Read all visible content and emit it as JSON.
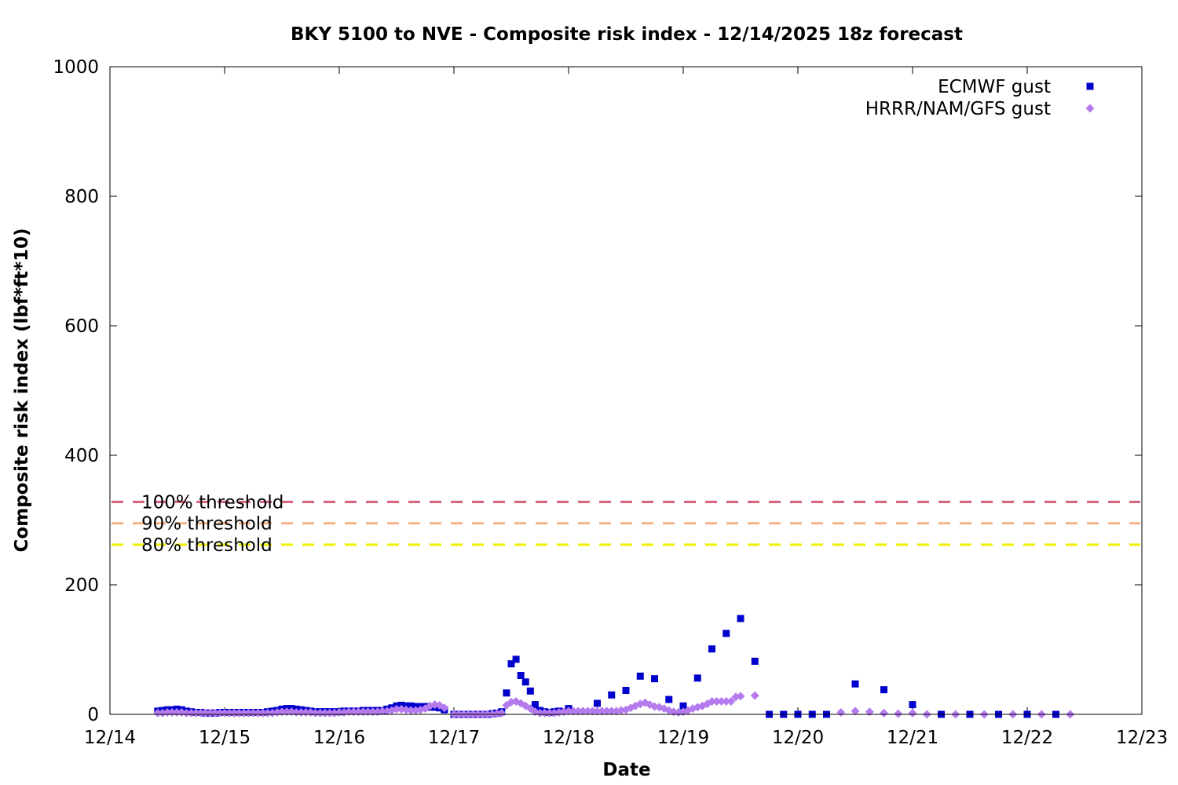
{
  "chart_data": {
    "type": "scatter",
    "title": "BKY 5100 to NVE - Composite risk index - 12/14/2025 18z forecast",
    "xlabel": "Date",
    "ylabel": "Composite risk index (lbf*ft*10)",
    "xlim": [
      "2025-12-14",
      "2025-12-23"
    ],
    "ylim": [
      0,
      1000
    ],
    "x_ticks": [
      "12/14",
      "12/15",
      "12/16",
      "12/17",
      "12/18",
      "12/19",
      "12/20",
      "12/21",
      "12/22",
      "12/23"
    ],
    "y_ticks": [
      0,
      200,
      400,
      600,
      800,
      1000
    ],
    "grid": false,
    "legend": "top-right",
    "colors": {
      "ecmwf": "#0000cc",
      "hrrr": "#b57bee",
      "threshold_100": "#d4607a",
      "threshold_90": "#f5b58a",
      "threshold_80": "#f0f000"
    },
    "thresholds": [
      {
        "label": "100% threshold",
        "value": 328,
        "color": "#d4607a"
      },
      {
        "label": "90% threshold",
        "value": 295,
        "color": "#f5b58a"
      },
      {
        "label": "80% threshold",
        "value": 262,
        "color": "#f0f000"
      }
    ],
    "series": [
      {
        "name": "ECMWF gust",
        "marker": "square",
        "color": "#0000cc",
        "points": [
          [
            "2025-12-14 10:00",
            5
          ],
          [
            "2025-12-14 11:00",
            6
          ],
          [
            "2025-12-14 12:00",
            7
          ],
          [
            "2025-12-14 13:00",
            7
          ],
          [
            "2025-12-14 14:00",
            8
          ],
          [
            "2025-12-14 15:00",
            7
          ],
          [
            "2025-12-14 16:00",
            5
          ],
          [
            "2025-12-14 17:00",
            4
          ],
          [
            "2025-12-14 18:00",
            3
          ],
          [
            "2025-12-14 19:00",
            3
          ],
          [
            "2025-12-14 20:00",
            2
          ],
          [
            "2025-12-14 21:00",
            2
          ],
          [
            "2025-12-14 22:00",
            2
          ],
          [
            "2025-12-14 23:00",
            3
          ],
          [
            "2025-12-15 00:00",
            3
          ],
          [
            "2025-12-15 01:00",
            3
          ],
          [
            "2025-12-15 02:00",
            3
          ],
          [
            "2025-12-15 03:00",
            3
          ],
          [
            "2025-12-15 04:00",
            3
          ],
          [
            "2025-12-15 05:00",
            3
          ],
          [
            "2025-12-15 06:00",
            3
          ],
          [
            "2025-12-15 07:00",
            3
          ],
          [
            "2025-12-15 08:00",
            3
          ],
          [
            "2025-12-15 09:00",
            4
          ],
          [
            "2025-12-15 10:00",
            5
          ],
          [
            "2025-12-15 11:00",
            6
          ],
          [
            "2025-12-15 12:00",
            8
          ],
          [
            "2025-12-15 13:00",
            9
          ],
          [
            "2025-12-15 14:00",
            9
          ],
          [
            "2025-12-15 15:00",
            8
          ],
          [
            "2025-12-15 16:00",
            7
          ],
          [
            "2025-12-15 17:00",
            6
          ],
          [
            "2025-12-15 18:00",
            5
          ],
          [
            "2025-12-15 19:00",
            4
          ],
          [
            "2025-12-15 20:00",
            4
          ],
          [
            "2025-12-15 21:00",
            4
          ],
          [
            "2025-12-15 22:00",
            4
          ],
          [
            "2025-12-15 23:00",
            4
          ],
          [
            "2025-12-16 00:00",
            4
          ],
          [
            "2025-12-16 01:00",
            5
          ],
          [
            "2025-12-16 02:00",
            5
          ],
          [
            "2025-12-16 03:00",
            5
          ],
          [
            "2025-12-16 04:00",
            5
          ],
          [
            "2025-12-16 05:00",
            6
          ],
          [
            "2025-12-16 06:00",
            6
          ],
          [
            "2025-12-16 07:00",
            6
          ],
          [
            "2025-12-16 08:00",
            6
          ],
          [
            "2025-12-16 09:00",
            6
          ],
          [
            "2025-12-16 10:00",
            8
          ],
          [
            "2025-12-16 11:00",
            10
          ],
          [
            "2025-12-16 12:00",
            13
          ],
          [
            "2025-12-16 13:00",
            14
          ],
          [
            "2025-12-16 14:00",
            13
          ],
          [
            "2025-12-16 15:00",
            13
          ],
          [
            "2025-12-16 16:00",
            12
          ],
          [
            "2025-12-16 17:00",
            12
          ],
          [
            "2025-12-16 18:00",
            12
          ],
          [
            "2025-12-16 19:00",
            11
          ],
          [
            "2025-12-16 20:00",
            11
          ],
          [
            "2025-12-16 21:00",
            10
          ],
          [
            "2025-12-16 22:00",
            7
          ],
          [
            "2025-12-17 00:00",
            0
          ],
          [
            "2025-12-17 01:00",
            0
          ],
          [
            "2025-12-17 02:00",
            0
          ],
          [
            "2025-12-17 03:00",
            0
          ],
          [
            "2025-12-17 04:00",
            0
          ],
          [
            "2025-12-17 05:00",
            0
          ],
          [
            "2025-12-17 06:00",
            0
          ],
          [
            "2025-12-17 07:00",
            0
          ],
          [
            "2025-12-17 08:00",
            1
          ],
          [
            "2025-12-17 09:00",
            2
          ],
          [
            "2025-12-17 10:00",
            4
          ],
          [
            "2025-12-17 11:00",
            33
          ],
          [
            "2025-12-17 12:00",
            78
          ],
          [
            "2025-12-17 13:00",
            85
          ],
          [
            "2025-12-17 14:00",
            60
          ],
          [
            "2025-12-17 15:00",
            50
          ],
          [
            "2025-12-17 16:00",
            36
          ],
          [
            "2025-12-17 17:00",
            15
          ],
          [
            "2025-12-17 18:00",
            6
          ],
          [
            "2025-12-17 19:00",
            4
          ],
          [
            "2025-12-17 20:00",
            3
          ],
          [
            "2025-12-17 21:00",
            4
          ],
          [
            "2025-12-17 22:00",
            5
          ],
          [
            "2025-12-18 00:00",
            9
          ],
          [
            "2025-12-18 06:00",
            17
          ],
          [
            "2025-12-18 09:00",
            30
          ],
          [
            "2025-12-18 12:00",
            37
          ],
          [
            "2025-12-18 15:00",
            59
          ],
          [
            "2025-12-18 18:00",
            55
          ],
          [
            "2025-12-18 21:00",
            23
          ],
          [
            "2025-12-19 00:00",
            13
          ],
          [
            "2025-12-19 03:00",
            56
          ],
          [
            "2025-12-19 06:00",
            101
          ],
          [
            "2025-12-19 09:00",
            125
          ],
          [
            "2025-12-19 12:00",
            148
          ],
          [
            "2025-12-19 15:00",
            82
          ],
          [
            "2025-12-19 18:00",
            0
          ],
          [
            "2025-12-19 21:00",
            0
          ],
          [
            "2025-12-20 00:00",
            0
          ],
          [
            "2025-12-20 03:00",
            0
          ],
          [
            "2025-12-20 06:00",
            0
          ],
          [
            "2025-12-20 12:00",
            47
          ],
          [
            "2025-12-20 18:00",
            38
          ],
          [
            "2025-12-21 00:00",
            15
          ],
          [
            "2025-12-21 06:00",
            0
          ],
          [
            "2025-12-21 12:00",
            0
          ],
          [
            "2025-12-21 18:00",
            0
          ],
          [
            "2025-12-22 00:00",
            0
          ],
          [
            "2025-12-22 06:00",
            0
          ]
        ]
      },
      {
        "name": "HRRR/NAM/GFS gust",
        "marker": "diamond",
        "color": "#b57bee",
        "points": [
          [
            "2025-12-14 10:00",
            2
          ],
          [
            "2025-12-14 11:00",
            2
          ],
          [
            "2025-12-14 12:00",
            3
          ],
          [
            "2025-12-14 13:00",
            3
          ],
          [
            "2025-12-14 14:00",
            3
          ],
          [
            "2025-12-14 15:00",
            3
          ],
          [
            "2025-12-14 16:00",
            2
          ],
          [
            "2025-12-14 17:00",
            2
          ],
          [
            "2025-12-14 18:00",
            2
          ],
          [
            "2025-12-14 19:00",
            2
          ],
          [
            "2025-12-14 20:00",
            2
          ],
          [
            "2025-12-14 21:00",
            2
          ],
          [
            "2025-12-14 22:00",
            2
          ],
          [
            "2025-12-14 23:00",
            2
          ],
          [
            "2025-12-15 00:00",
            2
          ],
          [
            "2025-12-15 01:00",
            2
          ],
          [
            "2025-12-15 02:00",
            2
          ],
          [
            "2025-12-15 03:00",
            2
          ],
          [
            "2025-12-15 04:00",
            2
          ],
          [
            "2025-12-15 05:00",
            2
          ],
          [
            "2025-12-15 06:00",
            2
          ],
          [
            "2025-12-15 07:00",
            2
          ],
          [
            "2025-12-15 08:00",
            2
          ],
          [
            "2025-12-15 09:00",
            2
          ],
          [
            "2025-12-15 10:00",
            2
          ],
          [
            "2025-12-15 11:00",
            3
          ],
          [
            "2025-12-15 12:00",
            4
          ],
          [
            "2025-12-15 13:00",
            4
          ],
          [
            "2025-12-15 14:00",
            4
          ],
          [
            "2025-12-15 15:00",
            3
          ],
          [
            "2025-12-15 16:00",
            3
          ],
          [
            "2025-12-15 17:00",
            3
          ],
          [
            "2025-12-15 18:00",
            3
          ],
          [
            "2025-12-15 19:00",
            2
          ],
          [
            "2025-12-15 20:00",
            2
          ],
          [
            "2025-12-15 21:00",
            2
          ],
          [
            "2025-12-15 22:00",
            2
          ],
          [
            "2025-12-15 23:00",
            2
          ],
          [
            "2025-12-16 00:00",
            3
          ],
          [
            "2025-12-16 01:00",
            3
          ],
          [
            "2025-12-16 02:00",
            4
          ],
          [
            "2025-12-16 03:00",
            4
          ],
          [
            "2025-12-16 04:00",
            4
          ],
          [
            "2025-12-16 05:00",
            4
          ],
          [
            "2025-12-16 06:00",
            4
          ],
          [
            "2025-12-16 07:00",
            4
          ],
          [
            "2025-12-16 08:00",
            4
          ],
          [
            "2025-12-16 09:00",
            5
          ],
          [
            "2025-12-16 10:00",
            5
          ],
          [
            "2025-12-16 11:00",
            6
          ],
          [
            "2025-12-16 12:00",
            8
          ],
          [
            "2025-12-16 13:00",
            8
          ],
          [
            "2025-12-16 14:00",
            7
          ],
          [
            "2025-12-16 15:00",
            6
          ],
          [
            "2025-12-16 16:00",
            6
          ],
          [
            "2025-12-16 17:00",
            7
          ],
          [
            "2025-12-16 18:00",
            9
          ],
          [
            "2025-12-16 19:00",
            13
          ],
          [
            "2025-12-16 20:00",
            15
          ],
          [
            "2025-12-16 21:00",
            14
          ],
          [
            "2025-12-16 22:00",
            10
          ],
          [
            "2025-12-17 00:00",
            0
          ],
          [
            "2025-12-17 01:00",
            0
          ],
          [
            "2025-12-17 02:00",
            0
          ],
          [
            "2025-12-17 03:00",
            0
          ],
          [
            "2025-12-17 04:00",
            0
          ],
          [
            "2025-12-17 05:00",
            0
          ],
          [
            "2025-12-17 06:00",
            0
          ],
          [
            "2025-12-17 07:00",
            0
          ],
          [
            "2025-12-17 08:00",
            0
          ],
          [
            "2025-12-17 09:00",
            1
          ],
          [
            "2025-12-17 10:00",
            2
          ],
          [
            "2025-12-17 11:00",
            14
          ],
          [
            "2025-12-17 12:00",
            19
          ],
          [
            "2025-12-17 13:00",
            20
          ],
          [
            "2025-12-17 14:00",
            17
          ],
          [
            "2025-12-17 15:00",
            13
          ],
          [
            "2025-12-17 16:00",
            9
          ],
          [
            "2025-12-17 17:00",
            4
          ],
          [
            "2025-12-17 18:00",
            2
          ],
          [
            "2025-12-17 19:00",
            2
          ],
          [
            "2025-12-17 20:00",
            2
          ],
          [
            "2025-12-17 21:00",
            2
          ],
          [
            "2025-12-17 22:00",
            3
          ],
          [
            "2025-12-17 23:00",
            4
          ],
          [
            "2025-12-18 00:00",
            5
          ],
          [
            "2025-12-18 01:00",
            5
          ],
          [
            "2025-12-18 02:00",
            5
          ],
          [
            "2025-12-18 03:00",
            5
          ],
          [
            "2025-12-18 04:00",
            5
          ],
          [
            "2025-12-18 05:00",
            5
          ],
          [
            "2025-12-18 06:00",
            5
          ],
          [
            "2025-12-18 07:00",
            5
          ],
          [
            "2025-12-18 08:00",
            5
          ],
          [
            "2025-12-18 09:00",
            5
          ],
          [
            "2025-12-18 10:00",
            5
          ],
          [
            "2025-12-18 11:00",
            6
          ],
          [
            "2025-12-18 12:00",
            7
          ],
          [
            "2025-12-18 13:00",
            10
          ],
          [
            "2025-12-18 14:00",
            13
          ],
          [
            "2025-12-18 15:00",
            16
          ],
          [
            "2025-12-18 16:00",
            18
          ],
          [
            "2025-12-18 17:00",
            15
          ],
          [
            "2025-12-18 18:00",
            12
          ],
          [
            "2025-12-18 19:00",
            11
          ],
          [
            "2025-12-18 20:00",
            9
          ],
          [
            "2025-12-18 21:00",
            6
          ],
          [
            "2025-12-18 22:00",
            4
          ],
          [
            "2025-12-18 23:00",
            3
          ],
          [
            "2025-12-19 00:00",
            4
          ],
          [
            "2025-12-19 01:00",
            6
          ],
          [
            "2025-12-19 02:00",
            9
          ],
          [
            "2025-12-19 03:00",
            11
          ],
          [
            "2025-12-19 04:00",
            13
          ],
          [
            "2025-12-19 05:00",
            16
          ],
          [
            "2025-12-19 06:00",
            20
          ],
          [
            "2025-12-19 07:00",
            20
          ],
          [
            "2025-12-19 08:00",
            20
          ],
          [
            "2025-12-19 09:00",
            20
          ],
          [
            "2025-12-19 10:00",
            20
          ],
          [
            "2025-12-19 11:00",
            27
          ],
          [
            "2025-12-19 12:00",
            28
          ],
          [
            "2025-12-19 15:00",
            29
          ],
          [
            "2025-12-20 09:00",
            3
          ],
          [
            "2025-12-20 12:00",
            5
          ],
          [
            "2025-12-20 15:00",
            4
          ],
          [
            "2025-12-20 18:00",
            2
          ],
          [
            "2025-12-20 21:00",
            1
          ],
          [
            "2025-12-21 00:00",
            2
          ],
          [
            "2025-12-21 03:00",
            0
          ],
          [
            "2025-12-21 09:00",
            0
          ],
          [
            "2025-12-21 15:00",
            0
          ],
          [
            "2025-12-21 21:00",
            0
          ],
          [
            "2025-12-22 03:00",
            0
          ],
          [
            "2025-12-22 09:00",
            0
          ]
        ]
      }
    ]
  }
}
